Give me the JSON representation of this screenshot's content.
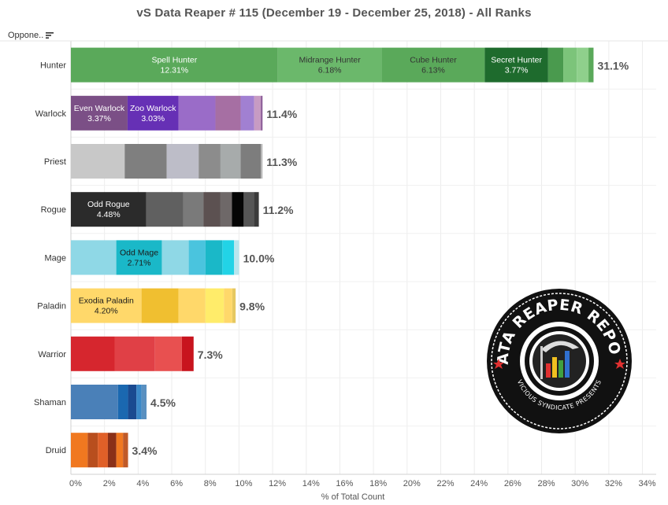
{
  "header": {
    "title": "vS Data Reaper # 115 (December 19 - December 25, 2018) - All Ranks",
    "column_label": "Oppone..",
    "sort_icon": "sort-descending-icon"
  },
  "logo": {
    "text_top": "DATA REAPER REPORT",
    "text_bottom": "VICIOUS SYNDICATE PRESENTS"
  },
  "chart_data": {
    "type": "bar",
    "orientation": "horizontal",
    "stacked": true,
    "title": "vS Data Reaper # 115 (December 19 - December 25, 2018) - All Ranks",
    "xlabel": "% of Total Count",
    "ylabel": "Oppone..",
    "xlim": [
      0,
      34
    ],
    "xticks": [
      "0%",
      "2%",
      "4%",
      "6%",
      "8%",
      "10%",
      "12%",
      "14%",
      "16%",
      "18%",
      "20%",
      "22%",
      "24%",
      "26%",
      "28%",
      "30%",
      "32%",
      "34%"
    ],
    "grid": true,
    "categories": [
      {
        "name": "Hunter",
        "total_label": "31.1%",
        "segments": [
          {
            "value": 12.31,
            "color": "#5aa95a",
            "label": "Spell Hunter",
            "value_label": "12.31%",
            "text_color": "#ffffff"
          },
          {
            "value": 6.18,
            "color": "#6bb86b",
            "label": "Midrange Hunter",
            "value_label": "6.18%",
            "text_color": "#333333"
          },
          {
            "value": 6.13,
            "color": "#5aa95a",
            "label": "Cube Hunter",
            "value_label": "6.13%",
            "text_color": "#333333"
          },
          {
            "value": 3.77,
            "color": "#1e6b2d",
            "label": "Secret Hunter",
            "value_label": "3.77%",
            "text_color": "#ffffff"
          },
          {
            "value": 0.9,
            "color": "#4a9a4e"
          },
          {
            "value": 0.8,
            "color": "#7cc47a"
          },
          {
            "value": 0.7,
            "color": "#8fd08c"
          },
          {
            "value": 0.3,
            "color": "#5aa95a"
          }
        ]
      },
      {
        "name": "Warlock",
        "total_label": "11.4%",
        "segments": [
          {
            "value": 3.37,
            "color": "#7b4f86",
            "label": "Even Warlock",
            "value_label": "3.37%",
            "text_color": "#ffffff"
          },
          {
            "value": 3.03,
            "color": "#6630b5",
            "label": "Zoo Warlock",
            "value_label": "3.03%",
            "text_color": "#ffffff"
          },
          {
            "value": 2.2,
            "color": "#9a6cc8"
          },
          {
            "value": 1.5,
            "color": "#a66fa3"
          },
          {
            "value": 0.8,
            "color": "#a180d2"
          },
          {
            "value": 0.4,
            "color": "#c79bc3"
          },
          {
            "value": 0.1,
            "color": "#8a5a96"
          }
        ]
      },
      {
        "name": "Priest",
        "total_label": "11.3%",
        "segments": [
          {
            "value": 3.2,
            "color": "#c8c8c8"
          },
          {
            "value": 2.5,
            "color": "#7f7f7f"
          },
          {
            "value": 1.9,
            "color": "#bdbdc8"
          },
          {
            "value": 1.3,
            "color": "#8c8c8c"
          },
          {
            "value": 1.2,
            "color": "#a7abab"
          },
          {
            "value": 1.2,
            "color": "#7d7d7d"
          },
          {
            "value": 0.1,
            "color": "#b5b5b5"
          }
        ]
      },
      {
        "name": "Rogue",
        "total_label": "11.2%",
        "segments": [
          {
            "value": 4.48,
            "color": "#2b2b2b",
            "label": "Odd Rogue",
            "value_label": "4.48%",
            "text_color": "#ffffff"
          },
          {
            "value": 2.2,
            "color": "#606060"
          },
          {
            "value": 1.2,
            "color": "#7a7a7a"
          },
          {
            "value": 1.0,
            "color": "#5c5151"
          },
          {
            "value": 0.7,
            "color": "#6e6868"
          },
          {
            "value": 0.7,
            "color": "#050505"
          },
          {
            "value": 0.6,
            "color": "#555555"
          },
          {
            "value": 0.3,
            "color": "#3a3a3a"
          }
        ]
      },
      {
        "name": "Mage",
        "total_label": "10.0%",
        "segments": [
          {
            "value": 2.7,
            "color": "#8fd8e6"
          },
          {
            "value": 2.71,
            "color": "#1ab8c8",
            "label": "Odd Mage",
            "value_label": "2.71%",
            "text_color": "#1a1a1a"
          },
          {
            "value": 1.6,
            "color": "#8fd8e6"
          },
          {
            "value": 1.0,
            "color": "#4ac4de"
          },
          {
            "value": 1.0,
            "color": "#1ab8c8"
          },
          {
            "value": 0.7,
            "color": "#22d3e6"
          },
          {
            "value": 0.3,
            "color": "#b8e6ee"
          }
        ]
      },
      {
        "name": "Paladin",
        "total_label": "9.8%",
        "segments": [
          {
            "value": 4.2,
            "color": "#ffd86a",
            "label": "Exodia Paladin",
            "value_label": "4.20%",
            "text_color": "#1a1a1a"
          },
          {
            "value": 2.2,
            "color": "#f0bf30"
          },
          {
            "value": 1.6,
            "color": "#ffd86a"
          },
          {
            "value": 1.1,
            "color": "#ffec6a"
          },
          {
            "value": 0.5,
            "color": "#ffd86a"
          },
          {
            "value": 0.2,
            "color": "#e6c860"
          }
        ]
      },
      {
        "name": "Warrior",
        "total_label": "7.3%",
        "segments": [
          {
            "value": 2.6,
            "color": "#d6262e"
          },
          {
            "value": 2.4,
            "color": "#e04046"
          },
          {
            "value": 1.6,
            "color": "#e85050"
          },
          {
            "value": 0.7,
            "color": "#c8141e"
          }
        ]
      },
      {
        "name": "Shaman",
        "total_label": "4.5%",
        "segments": [
          {
            "value": 2.8,
            "color": "#4a80b8"
          },
          {
            "value": 0.6,
            "color": "#1a68b0"
          },
          {
            "value": 0.5,
            "color": "#1a4a90"
          },
          {
            "value": 0.3,
            "color": "#3a88c8"
          },
          {
            "value": 0.3,
            "color": "#5a90c0"
          }
        ]
      },
      {
        "name": "Druid",
        "total_label": "3.4%",
        "segments": [
          {
            "value": 1.0,
            "color": "#f07820"
          },
          {
            "value": 0.6,
            "color": "#b84e1e"
          },
          {
            "value": 0.6,
            "color": "#e06028"
          },
          {
            "value": 0.5,
            "color": "#8a3018"
          },
          {
            "value": 0.4,
            "color": "#f07820"
          },
          {
            "value": 0.3,
            "color": "#c05a28"
          }
        ]
      }
    ]
  }
}
